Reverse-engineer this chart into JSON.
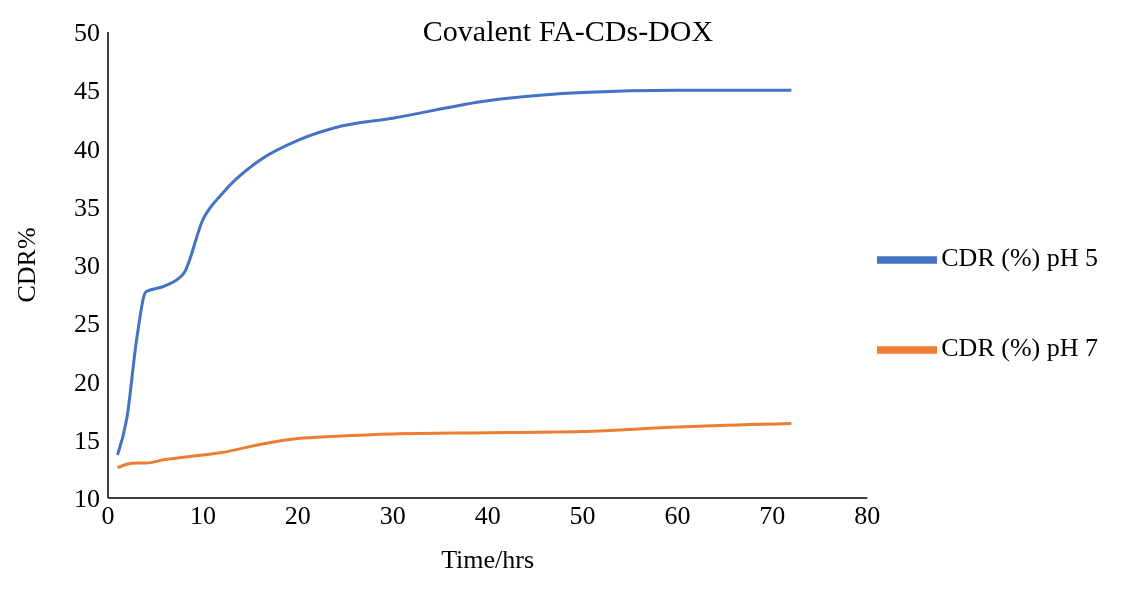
{
  "chart_data": {
    "type": "line",
    "title": "Covalent FA-CDs-DOX",
    "xlabel": "Time/hrs",
    "ylabel": "CDR%",
    "x": [
      1,
      2,
      3,
      4,
      6,
      8,
      10,
      12,
      16,
      20,
      24,
      30,
      40,
      50,
      60,
      72
    ],
    "series": [
      {
        "name": "CDR (%) pH 5",
        "color": "#4472c4",
        "values": [
          13.7,
          16.9,
          23.5,
          27.7,
          28.2,
          29.3,
          33.9,
          36.1,
          39.0,
          40.7,
          41.8,
          42.6,
          44.1,
          44.8,
          45.0,
          45.0
        ]
      },
      {
        "name": "CDR (%) pH 7",
        "color": "#ed7d31",
        "values": [
          12.6,
          12.9,
          13.0,
          13.0,
          13.3,
          13.5,
          13.7,
          13.9,
          14.6,
          15.1,
          15.3,
          15.5,
          15.6,
          15.7,
          16.1,
          16.4
        ]
      }
    ],
    "xlim": [
      0,
      80
    ],
    "xticks": [
      0,
      10,
      20,
      30,
      40,
      50,
      60,
      70,
      80
    ],
    "ylim": [
      10,
      50
    ],
    "yticks": [
      10,
      15,
      20,
      25,
      30,
      35,
      40,
      45,
      50
    ],
    "grid": false,
    "legend": "right",
    "marker": "none",
    "line_style": "solid"
  }
}
